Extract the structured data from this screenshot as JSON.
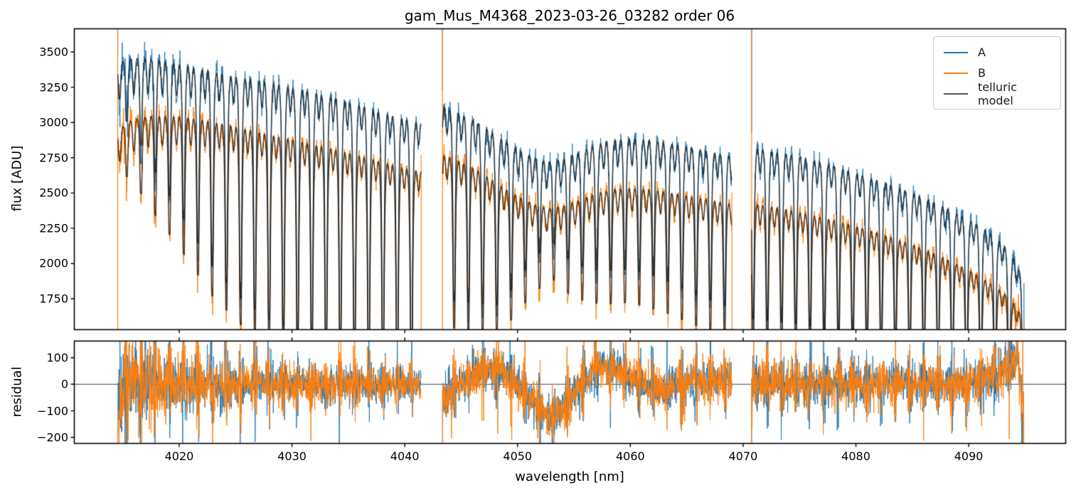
{
  "chart_data": {
    "type": "line",
    "title": "gam_Mus_M4368_2023-03-26_03282  order 06",
    "xlabel": "wavelength [nm]",
    "xlim": [
      4010.7,
      4098.6
    ],
    "xticks": [
      4020,
      4030,
      4040,
      4050,
      4060,
      4070,
      4080,
      4090
    ],
    "xtick_labels": [
      "4020",
      "4030",
      "4040",
      "4050",
      "4060",
      "4070",
      "4080",
      "4090"
    ],
    "grid": false,
    "legend_position": "upper right",
    "panels": [
      {
        "name": "flux",
        "ylabel": "flux [ADU]",
        "ylim": [
          1531,
          3664
        ],
        "yticks": [
          1750,
          2000,
          2250,
          2500,
          2750,
          3000,
          3250,
          3500
        ],
        "ytick_labels": [
          "1750",
          "2000",
          "2250",
          "2500",
          "2750",
          "3000",
          "3250",
          "3500"
        ]
      },
      {
        "name": "residual",
        "ylabel": "residual",
        "ylim": [
          -222.9,
          162.9
        ],
        "yticks": [
          -200,
          -100,
          0,
          100
        ],
        "ytick_labels": [
          "−200",
          "−100",
          "0",
          "100"
        ],
        "zero_line": true
      }
    ],
    "series": [
      {
        "name": "A",
        "color": "#1f77b4"
      },
      {
        "name": "B",
        "color": "#ff7f0e"
      },
      {
        "name": "telluric model",
        "color": "#555555"
      }
    ],
    "model_draw_color": "rgba(25,25,25,0.78)",
    "spine_color": "#000000",
    "zero_line_color": "#404040",
    "comb": {
      "start": 4015.35,
      "spacing": 1.262,
      "sigma_core": 0.085,
      "core_weight": 0.85,
      "sigma_wings": 0.21,
      "wings_weight": 0.3,
      "secondary_depth": 0.09,
      "secondary_sigma": 0.12
    },
    "residual_sigma": 33,
    "noise_seed": 42,
    "segments": [
      {
        "xrange": [
          4014.55,
          4041.45
        ],
        "start_spike": true,
        "end_drop": "B",
        "continuum_A": [
          [
            4014.55,
            3470
          ],
          [
            4015.5,
            3510
          ],
          [
            4016.5,
            3525
          ],
          [
            4017.5,
            3530
          ],
          [
            4019,
            3520
          ],
          [
            4020.5,
            3508
          ],
          [
            4022,
            3492
          ],
          [
            4024,
            3465
          ],
          [
            4026,
            3440
          ],
          [
            4028,
            3418
          ],
          [
            4030,
            3385
          ],
          [
            4032,
            3345
          ],
          [
            4034,
            3305
          ],
          [
            4036,
            3255
          ],
          [
            4038,
            3200
          ],
          [
            4040,
            3155
          ],
          [
            4041.45,
            3125
          ]
        ],
        "continuum_B": [
          [
            4014.55,
            2985
          ],
          [
            4015.5,
            3055
          ],
          [
            4016.5,
            3095
          ],
          [
            4017.5,
            3115
          ],
          [
            4019,
            3128
          ],
          [
            4020.5,
            3130
          ],
          [
            4022,
            3120
          ],
          [
            4024,
            3098
          ],
          [
            4026,
            3068
          ],
          [
            4028,
            3032
          ],
          [
            4030,
            3000
          ],
          [
            4032,
            2962
          ],
          [
            4034,
            2925
          ],
          [
            4036,
            2882
          ],
          [
            4038,
            2838
          ],
          [
            4040,
            2792
          ],
          [
            4041.45,
            2768
          ]
        ],
        "line_depth": [
          [
            4015.35,
            0.14
          ],
          [
            4017.9,
            0.25
          ],
          [
            4020.4,
            0.34
          ],
          [
            4022.9,
            0.43
          ],
          [
            4025.4,
            0.49
          ],
          [
            4027.9,
            0.53
          ],
          [
            4031.7,
            0.56
          ],
          [
            4036,
            0.57
          ],
          [
            4041.4,
            0.58
          ]
        ],
        "noise_sigma": [
          [
            4014.7,
            62
          ],
          [
            4016,
            50
          ],
          [
            4018,
            42
          ],
          [
            4022,
            36
          ],
          [
            4028,
            31
          ],
          [
            4034,
            28
          ],
          [
            4041.4,
            26
          ]
        ],
        "residual_wave": [
          [
            4014.55,
            -170
          ],
          [
            4014.85,
            -60
          ],
          [
            4015.1,
            20
          ],
          [
            4015.5,
            35
          ],
          [
            4016.5,
            15
          ],
          [
            4018,
            5
          ],
          [
            4022,
            0
          ],
          [
            4041.45,
            0
          ]
        ],
        "residual_env": [
          [
            4014.7,
            2.6
          ],
          [
            4015.5,
            2.3
          ],
          [
            4017,
            1.9
          ],
          [
            4019,
            1.5
          ],
          [
            4022,
            1.25
          ],
          [
            4027,
            1.05
          ],
          [
            4033,
            0.92
          ],
          [
            4041.45,
            0.85
          ]
        ]
      },
      {
        "xrange": [
          4043.35,
          4069.0
        ],
        "start_spike": true,
        "end_drop": "B",
        "continuum_A": [
          [
            4043.35,
            3230
          ],
          [
            4044.5,
            3190
          ],
          [
            4046,
            3130
          ],
          [
            4047.5,
            3050
          ],
          [
            4049,
            2960
          ],
          [
            4050.5,
            2870
          ],
          [
            4052,
            2800
          ],
          [
            4052.9,
            2783
          ],
          [
            4054,
            2808
          ],
          [
            4055.5,
            2868
          ],
          [
            4057,
            2928
          ],
          [
            4058.5,
            2962
          ],
          [
            4060,
            2973
          ],
          [
            4061.5,
            2965
          ],
          [
            4063,
            2948
          ],
          [
            4064.5,
            2928
          ],
          [
            4066,
            2905
          ],
          [
            4067.5,
            2880
          ],
          [
            4069,
            2852
          ]
        ],
        "continuum_B": [
          [
            4043.35,
            2872
          ],
          [
            4044.5,
            2838
          ],
          [
            4046,
            2778
          ],
          [
            4047.5,
            2700
          ],
          [
            4049,
            2612
          ],
          [
            4050.5,
            2528
          ],
          [
            4052,
            2462
          ],
          [
            4052.9,
            2445
          ],
          [
            4054,
            2468
          ],
          [
            4055.5,
            2520
          ],
          [
            4057,
            2572
          ],
          [
            4058.5,
            2602
          ],
          [
            4060,
            2612
          ],
          [
            4061.5,
            2604
          ],
          [
            4063,
            2588
          ],
          [
            4064.5,
            2568
          ],
          [
            4066,
            2548
          ],
          [
            4067.5,
            2528
          ],
          [
            4069,
            2505
          ]
        ],
        "line_depth": [
          [
            4043.5,
            0.46
          ],
          [
            4046,
            0.45
          ],
          [
            4048.5,
            0.43
          ],
          [
            4051,
            0.3
          ],
          [
            4052.9,
            0.22
          ],
          [
            4055,
            0.3
          ],
          [
            4057.5,
            0.34
          ],
          [
            4060,
            0.34
          ],
          [
            4063,
            0.36
          ],
          [
            4066,
            0.39
          ],
          [
            4069,
            0.41
          ]
        ],
        "noise_sigma": [
          [
            4043.5,
            40
          ],
          [
            4045,
            33
          ],
          [
            4050,
            30
          ],
          [
            4055,
            29
          ],
          [
            4060,
            28
          ],
          [
            4069,
            28
          ]
        ],
        "residual_wave": [
          [
            4043.35,
            -70
          ],
          [
            4044.3,
            -15
          ],
          [
            4045.5,
            25
          ],
          [
            4047,
            55
          ],
          [
            4048.2,
            55
          ],
          [
            4049.3,
            25
          ],
          [
            4050.6,
            -25
          ],
          [
            4051.8,
            -85
          ],
          [
            4052.9,
            -125
          ],
          [
            4054,
            -85
          ],
          [
            4055.3,
            -20
          ],
          [
            4056.6,
            40
          ],
          [
            4057.8,
            65
          ],
          [
            4059,
            50
          ],
          [
            4060.3,
            18
          ],
          [
            4061.5,
            -8
          ],
          [
            4062.8,
            -22
          ],
          [
            4064,
            -12
          ],
          [
            4065.2,
            3
          ],
          [
            4066.5,
            10
          ],
          [
            4068,
            15
          ],
          [
            4069,
            8
          ]
        ],
        "residual_env": [
          [
            4043.5,
            1.3
          ],
          [
            4045,
            1.05
          ],
          [
            4050,
            1.0
          ],
          [
            4060,
            0.95
          ],
          [
            4069,
            0.95
          ]
        ]
      },
      {
        "xrange": [
          4070.75,
          4094.9
        ],
        "start_spike": true,
        "end_drop": "AB",
        "continuum_A": [
          [
            4070.75,
            2925
          ],
          [
            4072,
            2905
          ],
          [
            4074,
            2875
          ],
          [
            4076,
            2838
          ],
          [
            4078,
            2792
          ],
          [
            4080,
            2738
          ],
          [
            4082,
            2682
          ],
          [
            4084,
            2625
          ],
          [
            4086,
            2560
          ],
          [
            4088,
            2482
          ],
          [
            4090,
            2398
          ],
          [
            4091.5,
            2322
          ],
          [
            4093,
            2222
          ],
          [
            4094,
            2112
          ],
          [
            4094.6,
            2005
          ],
          [
            4094.9,
            1860
          ]
        ],
        "continuum_B": [
          [
            4070.75,
            2515
          ],
          [
            4072,
            2498
          ],
          [
            4074,
            2468
          ],
          [
            4076,
            2432
          ],
          [
            4078,
            2392
          ],
          [
            4080,
            2348
          ],
          [
            4082,
            2298
          ],
          [
            4084,
            2242
          ],
          [
            4086,
            2182
          ],
          [
            4088,
            2108
          ],
          [
            4090,
            2028
          ],
          [
            4091.5,
            1952
          ],
          [
            4093,
            1868
          ],
          [
            4094,
            1782
          ],
          [
            4094.6,
            1702
          ],
          [
            4094.9,
            1585
          ]
        ],
        "line_depth": [
          [
            4071,
            0.45
          ],
          [
            4075,
            0.45
          ],
          [
            4080,
            0.46
          ],
          [
            4085,
            0.46
          ],
          [
            4090,
            0.47
          ],
          [
            4094.9,
            0.48
          ]
        ],
        "noise_sigma": [
          [
            4070.9,
            34
          ],
          [
            4073,
            29
          ],
          [
            4080,
            28
          ],
          [
            4088,
            29
          ],
          [
            4092,
            33
          ],
          [
            4094.9,
            46
          ]
        ],
        "residual_wave": [
          [
            4070.75,
            -20
          ],
          [
            4071.2,
            5
          ],
          [
            4073,
            5
          ],
          [
            4076,
            0
          ],
          [
            4080,
            0
          ],
          [
            4084,
            3
          ],
          [
            4088,
            0
          ],
          [
            4090,
            8
          ],
          [
            4092.5,
            22
          ],
          [
            4093.8,
            85
          ],
          [
            4094.4,
            105
          ],
          [
            4094.7,
            -70
          ],
          [
            4094.9,
            -215
          ]
        ],
        "residual_env": [
          [
            4070.9,
            1.25
          ],
          [
            4072,
            1.05
          ],
          [
            4080,
            1.0
          ],
          [
            4090,
            1.0
          ],
          [
            4093,
            1.15
          ],
          [
            4094.9,
            1.4
          ]
        ]
      }
    ]
  }
}
